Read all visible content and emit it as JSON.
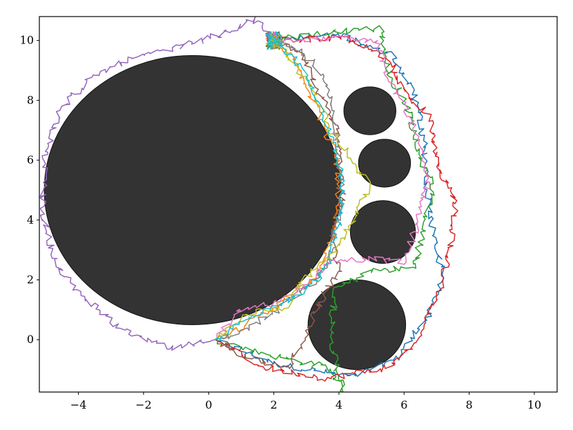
{
  "chart_data": {
    "type": "line",
    "title": "",
    "xlabel": "",
    "ylabel": "",
    "xlim": [
      -5.2,
      10.7
    ],
    "ylim": [
      -1.75,
      10.8
    ],
    "xticks": [
      -4,
      -2,
      0,
      2,
      4,
      6,
      8,
      10
    ],
    "yticks": [
      0,
      2,
      4,
      6,
      8,
      10
    ],
    "xtick_labels": [
      "−4",
      "−2",
      "0",
      "2",
      "4",
      "6",
      "8",
      "10"
    ],
    "ytick_labels": [
      "0",
      "2",
      "4",
      "6",
      "8",
      "10"
    ],
    "grid": false,
    "obstacle_color": "#333333",
    "obstacles": [
      {
        "cx": -0.5,
        "cy": 5.0,
        "rx": 4.55,
        "ry": 4.5
      },
      {
        "cx": 4.95,
        "cy": 7.65,
        "rx": 0.8,
        "ry": 0.8
      },
      {
        "cx": 5.4,
        "cy": 5.9,
        "rx": 0.8,
        "ry": 0.8
      },
      {
        "cx": 5.35,
        "cy": 3.6,
        "rx": 1.0,
        "ry": 1.05
      },
      {
        "cx": 4.55,
        "cy": 0.5,
        "rx": 1.5,
        "ry": 1.5
      }
    ],
    "start": [
      0.2,
      0.0
    ],
    "goal": [
      2.0,
      10.0
    ],
    "series": [
      {
        "color": "#1f77b4",
        "waypoints": [
          [
            0.2,
            0.0
          ],
          [
            2.0,
            -0.8
          ],
          [
            4.5,
            -1.25
          ],
          [
            5.8,
            -0.6
          ],
          [
            6.8,
            0.9
          ],
          [
            7.2,
            2.1
          ],
          [
            6.9,
            3.5
          ],
          [
            6.7,
            5.1
          ],
          [
            6.6,
            6.7
          ],
          [
            6.3,
            8.2
          ],
          [
            5.7,
            9.5
          ],
          [
            4.0,
            10.2
          ],
          [
            2.0,
            10.0
          ]
        ]
      },
      {
        "color": "#ff7f0e",
        "waypoints": [
          [
            0.2,
            0.0
          ],
          [
            1.3,
            0.6
          ],
          [
            2.3,
            1.3
          ],
          [
            3.3,
            2.1
          ],
          [
            3.7,
            3.1
          ],
          [
            3.9,
            4.1
          ],
          [
            4.0,
            5.1
          ],
          [
            3.9,
            6.2
          ],
          [
            3.5,
            7.2
          ],
          [
            3.1,
            8.3
          ],
          [
            2.7,
            9.3
          ],
          [
            2.0,
            10.0
          ]
        ]
      },
      {
        "color": "#2ca02c",
        "waypoints": [
          [
            0.2,
            0.0
          ],
          [
            1.8,
            -0.5
          ],
          [
            3.6,
            -0.9
          ],
          [
            4.2,
            -1.7
          ],
          [
            3.7,
            -0.2
          ],
          [
            3.9,
            1.7
          ],
          [
            5.0,
            2.3
          ],
          [
            6.3,
            2.4
          ],
          [
            6.6,
            3.6
          ],
          [
            6.9,
            5.0
          ],
          [
            6.4,
            6.3
          ],
          [
            6.1,
            7.8
          ],
          [
            5.5,
            9.0
          ],
          [
            5.3,
            10.4
          ],
          [
            3.8,
            10.3
          ],
          [
            2.0,
            10.0
          ]
        ]
      },
      {
        "color": "#d62728",
        "waypoints": [
          [
            0.2,
            0.0
          ],
          [
            1.6,
            -0.9
          ],
          [
            3.6,
            -1.3
          ],
          [
            5.6,
            -0.9
          ],
          [
            6.4,
            0.0
          ],
          [
            7.0,
            1.4
          ],
          [
            7.4,
            3.0
          ],
          [
            7.6,
            4.6
          ],
          [
            7.0,
            5.9
          ],
          [
            6.8,
            7.4
          ],
          [
            6.0,
            8.3
          ],
          [
            5.6,
            9.3
          ],
          [
            4.2,
            10.1
          ],
          [
            2.0,
            10.0
          ]
        ]
      },
      {
        "color": "#9467bd",
        "waypoints": [
          [
            0.2,
            0.0
          ],
          [
            -1.2,
            -0.3
          ],
          [
            -2.8,
            0.4
          ],
          [
            -3.8,
            1.4
          ],
          [
            -4.7,
            2.5
          ],
          [
            -5.1,
            4.3
          ],
          [
            -5.0,
            6.3
          ],
          [
            -4.6,
            7.6
          ],
          [
            -3.8,
            8.6
          ],
          [
            -2.6,
            9.3
          ],
          [
            -1.2,
            9.7
          ],
          [
            0.4,
            10.2
          ],
          [
            1.4,
            10.7
          ],
          [
            2.0,
            10.0
          ]
        ]
      },
      {
        "color": "#8c564b",
        "waypoints": [
          [
            0.2,
            0.0
          ],
          [
            1.2,
            -0.6
          ],
          [
            2.5,
            -0.9
          ],
          [
            3.0,
            0.2
          ],
          [
            3.4,
            1.3
          ],
          [
            4.0,
            2.2
          ],
          [
            3.8,
            3.4
          ],
          [
            4.1,
            4.6
          ],
          [
            4.0,
            5.8
          ],
          [
            3.9,
            7.1
          ],
          [
            3.3,
            8.5
          ],
          [
            2.8,
            9.6
          ],
          [
            2.0,
            10.0
          ]
        ]
      },
      {
        "color": "#e377c2",
        "waypoints": [
          [
            0.2,
            0.0
          ],
          [
            1.0,
            1.0
          ],
          [
            2.3,
            1.3
          ],
          [
            3.0,
            1.9
          ],
          [
            3.7,
            2.6
          ],
          [
            4.9,
            2.7
          ],
          [
            6.0,
            2.6
          ],
          [
            6.4,
            3.9
          ],
          [
            6.7,
            5.2
          ],
          [
            6.5,
            6.6
          ],
          [
            6.0,
            7.9
          ],
          [
            5.5,
            8.8
          ],
          [
            5.2,
            9.9
          ],
          [
            4.0,
            10.1
          ],
          [
            2.0,
            10.0
          ]
        ]
      },
      {
        "color": "#7f7f7f",
        "waypoints": [
          [
            0.2,
            0.0
          ],
          [
            1.1,
            0.3
          ],
          [
            2.3,
            1.1
          ],
          [
            3.1,
            1.8
          ],
          [
            3.7,
            2.6
          ],
          [
            3.9,
            3.7
          ],
          [
            4.1,
            4.9
          ],
          [
            4.0,
            6.1
          ],
          [
            3.9,
            7.2
          ],
          [
            3.7,
            8.3
          ],
          [
            3.2,
            9.3
          ],
          [
            2.4,
            9.9
          ],
          [
            2.0,
            10.0
          ]
        ]
      },
      {
        "color": "#bcbd22",
        "waypoints": [
          [
            0.2,
            0.0
          ],
          [
            1.3,
            0.9
          ],
          [
            2.4,
            1.1
          ],
          [
            2.9,
            2.0
          ],
          [
            3.7,
            2.8
          ],
          [
            4.2,
            3.5
          ],
          [
            4.6,
            4.3
          ],
          [
            4.9,
            5.2
          ],
          [
            4.4,
            6.0
          ],
          [
            3.7,
            7.1
          ],
          [
            3.3,
            8.1
          ],
          [
            2.8,
            9.0
          ],
          [
            2.3,
            9.6
          ],
          [
            2.0,
            10.0
          ]
        ]
      },
      {
        "color": "#17becf",
        "waypoints": [
          [
            0.2,
            0.0
          ],
          [
            1.0,
            0.6
          ],
          [
            1.9,
            1.0
          ],
          [
            2.8,
            1.5
          ],
          [
            3.5,
            2.2
          ],
          [
            3.8,
            3.0
          ],
          [
            4.0,
            4.0
          ],
          [
            4.1,
            5.0
          ],
          [
            4.0,
            6.0
          ],
          [
            3.7,
            7.0
          ],
          [
            3.4,
            8.0
          ],
          [
            2.9,
            9.0
          ],
          [
            2.3,
            9.8
          ],
          [
            2.0,
            10.0
          ]
        ]
      }
    ]
  }
}
